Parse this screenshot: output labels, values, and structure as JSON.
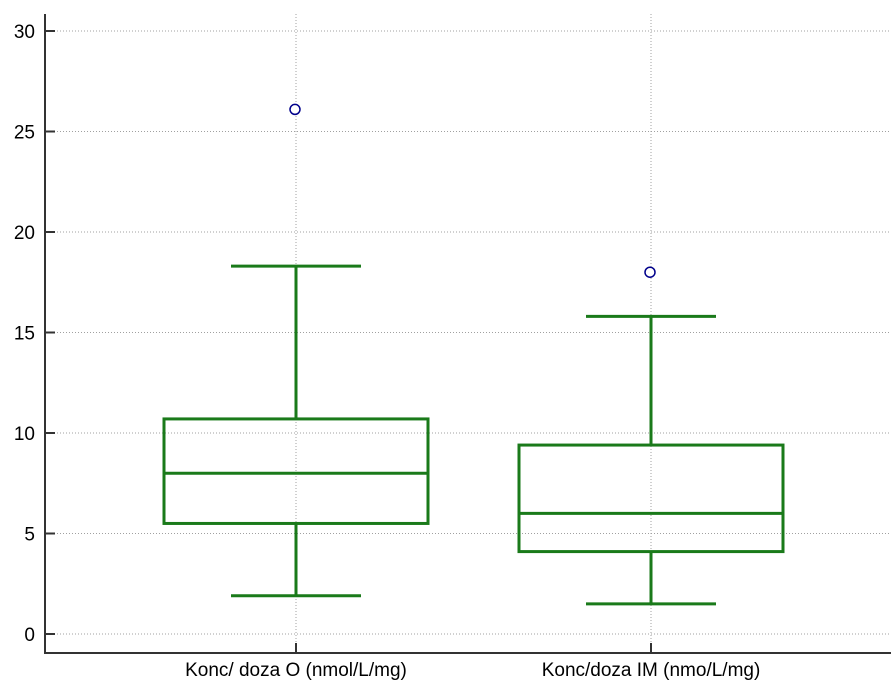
{
  "chart_data": {
    "type": "box",
    "categories": [
      "Konc/ doza O (nmol/L/mg)",
      "Konc/doza IM (nmo/L/mg)"
    ],
    "boxes": [
      {
        "whisker_low": 1.9,
        "q1": 5.5,
        "median": 8.0,
        "q3": 10.7,
        "whisker_high": 18.3,
        "outliers": [
          26.1
        ]
      },
      {
        "whisker_low": 1.5,
        "q1": 4.1,
        "median": 6.0,
        "q3": 9.4,
        "whisker_high": 15.8,
        "outliers": [
          18.0
        ]
      }
    ],
    "y_ticks": [
      0,
      5,
      10,
      15,
      20,
      25,
      30
    ],
    "ylim": [
      -0.8,
      30.3
    ],
    "grid": true,
    "colors": {
      "box": "#1a7a1a",
      "outlier": "#00008b",
      "grid": "#a0a0a0",
      "axis": "#333333"
    }
  }
}
